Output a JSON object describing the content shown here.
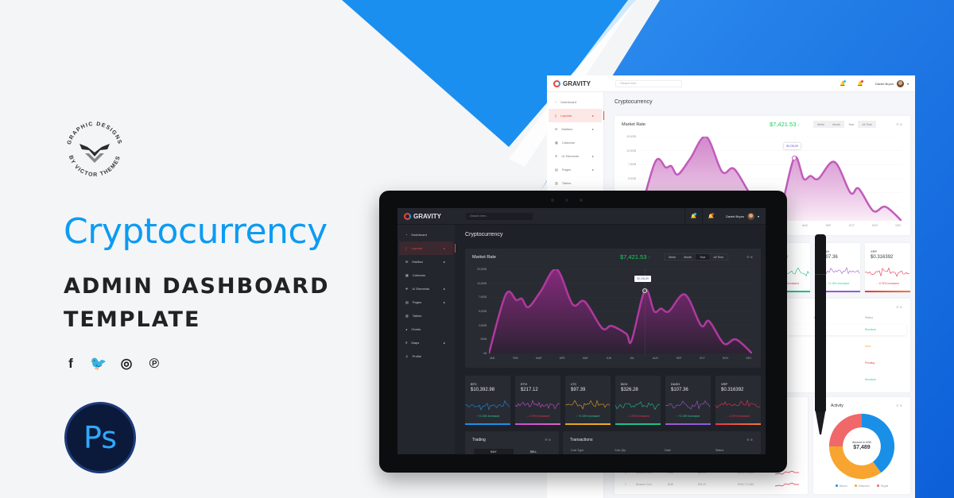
{
  "brand_logo": {
    "top_text": "GRAPHIC DESIGNS",
    "bottom_text": "BY VICTOR THEMES"
  },
  "hero": {
    "title": "Cryptocurrency",
    "subtitle_line1": "ADMIN DASHBOARD",
    "subtitle_line2": "TEMPLATE"
  },
  "social": [
    {
      "icon": "facebook-icon",
      "glyph": "f"
    },
    {
      "icon": "twitter-icon",
      "glyph": "🐦"
    },
    {
      "icon": "instagram-icon",
      "glyph": "◎"
    },
    {
      "icon": "pinterest-icon",
      "glyph": "℗"
    }
  ],
  "photoshop_badge": {
    "text": "Ps"
  },
  "colors": {
    "accent_blue": "#0d9bf2",
    "active_red": "#e8443a",
    "price_green": "#1fce5c",
    "chart_purple": "#b0399d"
  },
  "dashboard": {
    "app_name": "GRAVITY",
    "search_placeholder": "Search here...",
    "user_name": "Daniel Bryan",
    "page_title": "Cryptocurrency",
    "sidebar": [
      {
        "label": "Dashboard",
        "icon": "gauge-icon"
      },
      {
        "label": "Layouts",
        "icon": "layout-icon",
        "active": true,
        "caret": true
      },
      {
        "label": "Mailbox",
        "icon": "mail-icon",
        "caret": true
      },
      {
        "label": "Calendar",
        "icon": "calendar-icon"
      },
      {
        "label": "UI Elements",
        "icon": "puzzle-icon",
        "caret": true
      },
      {
        "label": "Pages",
        "icon": "page-icon",
        "caret": true
      },
      {
        "label": "Tables",
        "icon": "table-icon"
      },
      {
        "label": "Charts",
        "icon": "chart-icon"
      },
      {
        "label": "Maps",
        "icon": "map-pin-icon",
        "caret": true
      },
      {
        "label": "Profile",
        "icon": "user-icon"
      }
    ],
    "market": {
      "title": "Market Rate",
      "price": "$7,421.53",
      "trend_arrow": "↑",
      "ranges": [
        "Week",
        "Month",
        "Year",
        "All Time"
      ],
      "selected_range": "Year",
      "y_ticks": [
        "20,000$",
        "10,000$",
        "7,500$",
        "5,000$",
        "2,500$",
        "500$",
        "0$"
      ],
      "x_ticks": [
        "JAN",
        "FEB",
        "MAR",
        "APR",
        "MAY",
        "JUN",
        "JUL",
        "AUG",
        "SEP",
        "OCT",
        "NOV",
        "DEC"
      ],
      "tooltip": "$9,230.89"
    },
    "coins": [
      {
        "symbol": "BTC",
        "value": "$10,392.98",
        "change": "↑ +2.15% Increased",
        "up": true,
        "color": "#1a8fe8",
        "color2": "#1a8fe8"
      },
      {
        "symbol": "ETH",
        "value": "$217.12",
        "change": "↓ -0.75% Increased",
        "up": false,
        "color": "#c94fd0",
        "color2": "#e060c8"
      },
      {
        "symbol": "LTC",
        "value": "$97.39",
        "change": "↑ +2.15% Increased",
        "up": true,
        "color": "#e3a21a",
        "color2": "#f0b020"
      },
      {
        "symbol": "BCH",
        "value": "$326.28",
        "change": "↓ -0.75% Increased",
        "up": false,
        "color": "#1fbf8a",
        "color2": "#1fbf8a"
      },
      {
        "symbol": "DASH",
        "value": "$107.36",
        "change": "↑ +2.15% Increased",
        "up": true,
        "color": "#a05acd",
        "color2": "#8a5ce0"
      },
      {
        "symbol": "XRP",
        "value": "$0.316392",
        "change": "↓ -0.75% Increased",
        "up": false,
        "color": "#e8354f",
        "color2": "#f07a30"
      }
    ],
    "trading": {
      "title": "Trading",
      "tabs": [
        "BUY",
        "SELL"
      ]
    },
    "transactions": {
      "title": "Transactions",
      "columns": [
        "Coin Type",
        "Coin Qty",
        "Date",
        "Status"
      ],
      "statuses": [
        {
          "text": "Received",
          "color": "#2ec99a"
        },
        {
          "text": "Sent",
          "color": "#f0a030"
        },
        {
          "text": "Pending",
          "color": "#e8443a"
        },
        {
          "text": "Received",
          "color": "#2ec99a"
        }
      ]
    },
    "market_table": {
      "rows": [
        {
          "rank": "6",
          "name": "Binance Coin",
          "symbol": "BNB",
          "price": "$29.19",
          "cap": "$295,774,280"
        },
        {
          "rank": "7",
          "name": "Binance Coin",
          "symbol": "BNB",
          "price": "$29.19",
          "cap": "$295,774,280"
        }
      ]
    },
    "activity": {
      "title": "Activity",
      "amount_label": "Amount in USD",
      "amount": "$7,489",
      "legend": [
        {
          "label": "Bitcoin",
          "color": "#1a8fe8",
          "share": 0.4
        },
        {
          "label": "Ethereum",
          "color": "#f7a530",
          "share": 0.35
        },
        {
          "label": "Ripple",
          "color": "#f0686a",
          "share": 0.25
        }
      ]
    }
  }
}
